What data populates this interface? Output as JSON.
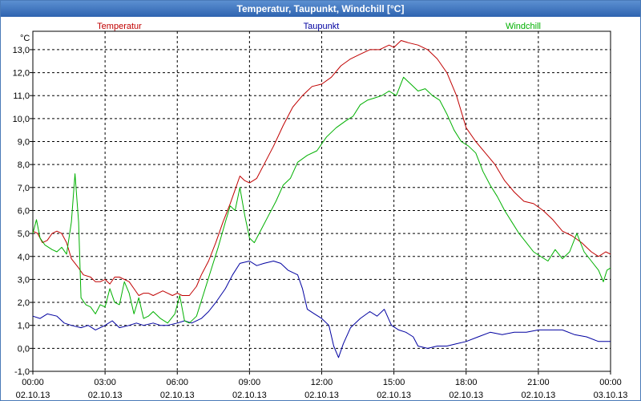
{
  "window": {
    "title": "Temperatur, Taupunkt, Windchill [°C]"
  },
  "chart_data": {
    "type": "line",
    "title": "Temperatur, Taupunkt, Windchill [°C]",
    "ylabel": "°C",
    "ylim": [
      -1.0,
      13.8
    ],
    "xlim": [
      0,
      24
    ],
    "grid": true,
    "legend_position": "top",
    "yticks": [
      "-1,0",
      "0,0",
      "1,0",
      "2,0",
      "3,0",
      "4,0",
      "5,0",
      "6,0",
      "7,0",
      "8,0",
      "9,0",
      "10,0",
      "11,0",
      "12,0",
      "13,0"
    ],
    "yticks_values": [
      -1,
      0,
      1,
      2,
      3,
      4,
      5,
      6,
      7,
      8,
      9,
      10,
      11,
      12,
      13
    ],
    "xticks": [
      {
        "x": 0,
        "time": "00:00",
        "date": "02.10.13"
      },
      {
        "x": 3,
        "time": "03:00",
        "date": "02.10.13"
      },
      {
        "x": 6,
        "time": "06:00",
        "date": "02.10.13"
      },
      {
        "x": 9,
        "time": "09:00",
        "date": "02.10.13"
      },
      {
        "x": 12,
        "time": "12:00",
        "date": "02.10.13"
      },
      {
        "x": 15,
        "time": "15:00",
        "date": "02.10.13"
      },
      {
        "x": 18,
        "time": "18:00",
        "date": "02.10.13"
      },
      {
        "x": 21,
        "time": "21:00",
        "date": "02.10.13"
      },
      {
        "x": 24,
        "time": "00:00",
        "date": "03.10.13"
      }
    ],
    "series": [
      {
        "name": "Temperatur",
        "color": "#c00000",
        "points": [
          [
            0,
            5.1
          ],
          [
            0.2,
            5.0
          ],
          [
            0.4,
            4.6
          ],
          [
            0.6,
            4.7
          ],
          [
            0.8,
            5.0
          ],
          [
            1.0,
            5.1
          ],
          [
            1.2,
            5.0
          ],
          [
            1.4,
            4.6
          ],
          [
            1.6,
            3.9
          ],
          [
            1.9,
            3.5
          ],
          [
            2.1,
            3.2
          ],
          [
            2.4,
            3.1
          ],
          [
            2.6,
            2.9
          ],
          [
            2.8,
            2.9
          ],
          [
            3.0,
            3.0
          ],
          [
            3.2,
            2.8
          ],
          [
            3.4,
            3.1
          ],
          [
            3.6,
            3.1
          ],
          [
            3.8,
            3.0
          ],
          [
            4.0,
            2.9
          ],
          [
            4.2,
            2.6
          ],
          [
            4.4,
            2.3
          ],
          [
            4.6,
            2.4
          ],
          [
            4.8,
            2.4
          ],
          [
            5.0,
            2.3
          ],
          [
            5.2,
            2.4
          ],
          [
            5.4,
            2.5
          ],
          [
            5.6,
            2.4
          ],
          [
            5.8,
            2.3
          ],
          [
            6.0,
            2.4
          ],
          [
            6.2,
            2.3
          ],
          [
            6.5,
            2.3
          ],
          [
            6.8,
            2.7
          ],
          [
            7.0,
            3.2
          ],
          [
            7.3,
            3.8
          ],
          [
            7.6,
            4.6
          ],
          [
            7.9,
            5.5
          ],
          [
            8.2,
            6.3
          ],
          [
            8.4,
            6.9
          ],
          [
            8.6,
            7.5
          ],
          [
            8.8,
            7.3
          ],
          [
            9.0,
            7.2
          ],
          [
            9.3,
            7.4
          ],
          [
            9.6,
            8.0
          ],
          [
            10.0,
            8.8
          ],
          [
            10.4,
            9.7
          ],
          [
            10.8,
            10.5
          ],
          [
            11.2,
            11.0
          ],
          [
            11.6,
            11.4
          ],
          [
            12.0,
            11.5
          ],
          [
            12.4,
            11.8
          ],
          [
            12.8,
            12.3
          ],
          [
            13.2,
            12.6
          ],
          [
            13.6,
            12.8
          ],
          [
            14.0,
            13.0
          ],
          [
            14.4,
            13.0
          ],
          [
            14.8,
            13.2
          ],
          [
            15.0,
            13.1
          ],
          [
            15.3,
            13.4
          ],
          [
            15.6,
            13.3
          ],
          [
            16.0,
            13.2
          ],
          [
            16.4,
            13.0
          ],
          [
            16.8,
            12.6
          ],
          [
            17.2,
            12.0
          ],
          [
            17.6,
            11.0
          ],
          [
            18.0,
            9.6
          ],
          [
            18.4,
            9.0
          ],
          [
            18.8,
            8.5
          ],
          [
            19.2,
            8.0
          ],
          [
            19.6,
            7.3
          ],
          [
            20.0,
            6.8
          ],
          [
            20.4,
            6.4
          ],
          [
            20.8,
            6.3
          ],
          [
            21.2,
            6.0
          ],
          [
            21.6,
            5.6
          ],
          [
            22.0,
            5.1
          ],
          [
            22.4,
            4.9
          ],
          [
            22.8,
            4.6
          ],
          [
            23.2,
            4.2
          ],
          [
            23.5,
            4.0
          ],
          [
            23.8,
            4.2
          ],
          [
            24.0,
            4.1
          ]
        ]
      },
      {
        "name": "Taupunkt",
        "color": "#0000a0",
        "points": [
          [
            0,
            1.4
          ],
          [
            0.3,
            1.3
          ],
          [
            0.6,
            1.5
          ],
          [
            1.0,
            1.4
          ],
          [
            1.3,
            1.1
          ],
          [
            1.6,
            1.0
          ],
          [
            2.0,
            0.9
          ],
          [
            2.3,
            1.0
          ],
          [
            2.6,
            0.8
          ],
          [
            3.0,
            1.0
          ],
          [
            3.3,
            1.2
          ],
          [
            3.6,
            0.9
          ],
          [
            4.0,
            1.0
          ],
          [
            4.3,
            1.1
          ],
          [
            4.6,
            1.0
          ],
          [
            5.0,
            1.1
          ],
          [
            5.3,
            1.0
          ],
          [
            5.6,
            1.0
          ],
          [
            6.0,
            1.1
          ],
          [
            6.3,
            1.2
          ],
          [
            6.6,
            1.1
          ],
          [
            7.0,
            1.3
          ],
          [
            7.3,
            1.6
          ],
          [
            7.6,
            2.0
          ],
          [
            8.0,
            2.6
          ],
          [
            8.3,
            3.2
          ],
          [
            8.6,
            3.7
          ],
          [
            9.0,
            3.8
          ],
          [
            9.3,
            3.6
          ],
          [
            9.6,
            3.7
          ],
          [
            10.0,
            3.8
          ],
          [
            10.3,
            3.7
          ],
          [
            10.6,
            3.4
          ],
          [
            11.0,
            3.2
          ],
          [
            11.2,
            2.6
          ],
          [
            11.4,
            1.7
          ],
          [
            11.7,
            1.5
          ],
          [
            12.0,
            1.3
          ],
          [
            12.3,
            1.0
          ],
          [
            12.5,
            0.1
          ],
          [
            12.7,
            -0.4
          ],
          [
            12.9,
            0.2
          ],
          [
            13.2,
            0.9
          ],
          [
            13.6,
            1.3
          ],
          [
            14.0,
            1.6
          ],
          [
            14.3,
            1.4
          ],
          [
            14.6,
            1.7
          ],
          [
            14.9,
            1.0
          ],
          [
            15.2,
            0.8
          ],
          [
            15.5,
            0.7
          ],
          [
            15.8,
            0.5
          ],
          [
            16.0,
            0.1
          ],
          [
            16.4,
            0.0
          ],
          [
            16.8,
            0.1
          ],
          [
            17.2,
            0.1
          ],
          [
            17.6,
            0.2
          ],
          [
            18.0,
            0.3
          ],
          [
            18.5,
            0.5
          ],
          [
            19.0,
            0.7
          ],
          [
            19.5,
            0.6
          ],
          [
            20.0,
            0.7
          ],
          [
            20.5,
            0.7
          ],
          [
            21.0,
            0.8
          ],
          [
            21.5,
            0.8
          ],
          [
            22.0,
            0.8
          ],
          [
            22.5,
            0.6
          ],
          [
            23.0,
            0.5
          ],
          [
            23.5,
            0.3
          ],
          [
            24.0,
            0.3
          ]
        ]
      },
      {
        "name": "Windchill",
        "color": "#00b000",
        "points": [
          [
            0,
            5.0
          ],
          [
            0.15,
            5.6
          ],
          [
            0.3,
            4.8
          ],
          [
            0.5,
            4.5
          ],
          [
            0.8,
            4.3
          ],
          [
            1.0,
            4.2
          ],
          [
            1.2,
            4.4
          ],
          [
            1.4,
            4.1
          ],
          [
            1.6,
            5.5
          ],
          [
            1.75,
            7.6
          ],
          [
            1.9,
            5.5
          ],
          [
            2.0,
            2.2
          ],
          [
            2.2,
            1.9
          ],
          [
            2.4,
            1.8
          ],
          [
            2.6,
            1.5
          ],
          [
            2.8,
            1.9
          ],
          [
            3.0,
            1.8
          ],
          [
            3.2,
            2.6
          ],
          [
            3.4,
            2.0
          ],
          [
            3.6,
            1.9
          ],
          [
            3.8,
            2.9
          ],
          [
            4.0,
            2.4
          ],
          [
            4.2,
            1.5
          ],
          [
            4.4,
            2.2
          ],
          [
            4.6,
            1.3
          ],
          [
            4.8,
            1.4
          ],
          [
            5.0,
            1.6
          ],
          [
            5.3,
            1.3
          ],
          [
            5.6,
            1.1
          ],
          [
            5.9,
            1.5
          ],
          [
            6.1,
            2.3
          ],
          [
            6.3,
            1.2
          ],
          [
            6.5,
            1.1
          ],
          [
            6.8,
            1.4
          ],
          [
            7.1,
            2.4
          ],
          [
            7.4,
            3.4
          ],
          [
            7.7,
            4.4
          ],
          [
            8.0,
            5.5
          ],
          [
            8.2,
            6.2
          ],
          [
            8.4,
            6.0
          ],
          [
            8.6,
            7.0
          ],
          [
            8.8,
            5.8
          ],
          [
            9.0,
            4.8
          ],
          [
            9.2,
            4.6
          ],
          [
            9.5,
            5.2
          ],
          [
            9.8,
            5.8
          ],
          [
            10.1,
            6.4
          ],
          [
            10.4,
            7.1
          ],
          [
            10.7,
            7.4
          ],
          [
            11.0,
            8.1
          ],
          [
            11.4,
            8.4
          ],
          [
            11.8,
            8.6
          ],
          [
            12.2,
            9.2
          ],
          [
            12.6,
            9.6
          ],
          [
            13.0,
            9.9
          ],
          [
            13.3,
            10.1
          ],
          [
            13.6,
            10.6
          ],
          [
            13.9,
            10.8
          ],
          [
            14.2,
            10.9
          ],
          [
            14.5,
            11.0
          ],
          [
            14.8,
            11.2
          ],
          [
            15.1,
            11.0
          ],
          [
            15.4,
            11.8
          ],
          [
            15.7,
            11.5
          ],
          [
            16.0,
            11.2
          ],
          [
            16.3,
            11.3
          ],
          [
            16.6,
            11.0
          ],
          [
            16.9,
            10.8
          ],
          [
            17.2,
            10.2
          ],
          [
            17.5,
            9.5
          ],
          [
            17.8,
            9.0
          ],
          [
            18.1,
            8.8
          ],
          [
            18.4,
            8.5
          ],
          [
            18.7,
            7.7
          ],
          [
            19.0,
            7.1
          ],
          [
            19.3,
            6.6
          ],
          [
            19.6,
            6.0
          ],
          [
            19.9,
            5.5
          ],
          [
            20.2,
            5.0
          ],
          [
            20.5,
            4.6
          ],
          [
            20.8,
            4.2
          ],
          [
            21.1,
            4.0
          ],
          [
            21.4,
            3.8
          ],
          [
            21.7,
            4.3
          ],
          [
            22.0,
            3.9
          ],
          [
            22.3,
            4.2
          ],
          [
            22.6,
            5.0
          ],
          [
            22.9,
            4.2
          ],
          [
            23.2,
            3.8
          ],
          [
            23.5,
            3.4
          ],
          [
            23.7,
            2.9
          ],
          [
            23.85,
            3.4
          ],
          [
            24.0,
            3.5
          ]
        ]
      }
    ]
  }
}
